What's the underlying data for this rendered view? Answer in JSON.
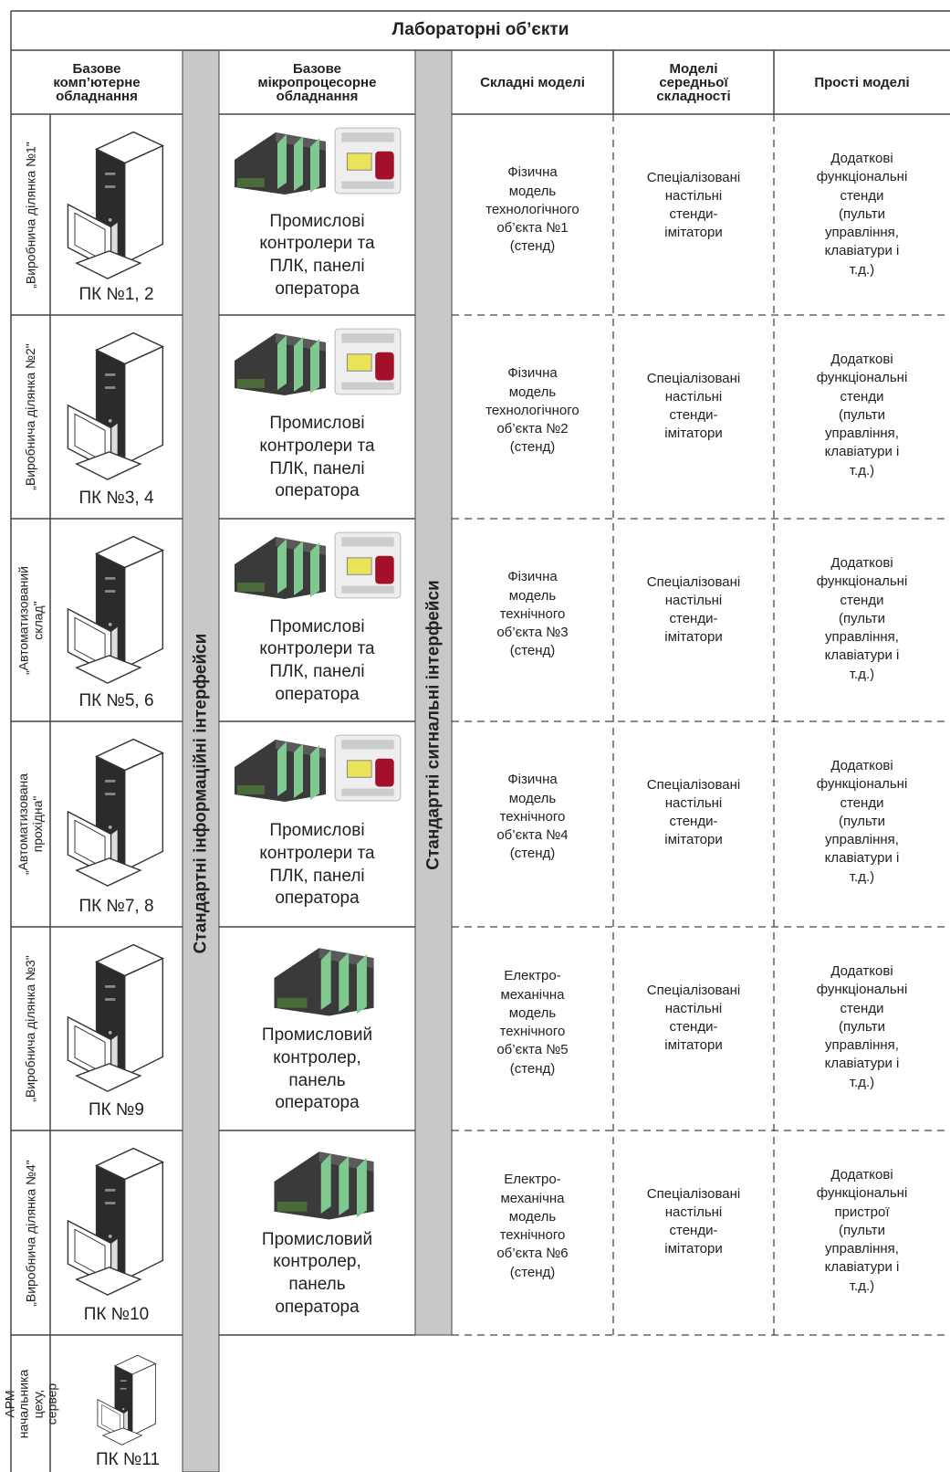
{
  "header": {
    "title": "Лабораторні об’єкти"
  },
  "columns": {
    "computer": "Базове\nкомп’ютерне\nобладнання",
    "micro": "Базове\nмікропроцесорне\nобладнання",
    "info_interfaces": "Стандартні інформаційні інтерфейси",
    "signal_interfaces": "Стандартні сигнальні інтерфейси",
    "complex": "Складні моделі",
    "medium": "Моделі\nсередньої\nскладності",
    "simple": "Прості моделі"
  },
  "rows": [
    {
      "site": "„Виробнича ділянка №1\"",
      "pc": "ПК №1, 2",
      "controllers": "Промислові\nконтролери та\nПЛК, панелі\nоператора",
      "complex": "Фізична\nмодель\nтехнологічного\nоб’єкта №1\n(стенд)",
      "medium": "Спеціалізовані\nнастільні\nстенди-\nімітатори",
      "simple": "Додаткові\nфункціональні\nстенди\n(пульти\nуправління,\nклавіатури і\nт.д.)"
    },
    {
      "site": "„Виробнича ділянка №2\"",
      "pc": "ПК №3, 4",
      "controllers": "Промислові\nконтролери та\nПЛК, панелі\nоператора",
      "complex": "Фізична\nмодель\nтехнологічного\nоб’єкта №2\n(стенд)",
      "medium": "Спеціалізовані\nнастільні\nстенди-\nімітатори",
      "simple": "Додаткові\nфункціональні\nстенди\n(пульти\nуправління,\nклавіатури і\nт.д.)"
    },
    {
      "site": "„Автоматизований\nсклад\"",
      "pc": "ПК №5, 6",
      "controllers": "Промислові\nконтролери та\nПЛК, панелі\nоператора",
      "complex": "Фізична\nмодель\nтехнічного\nоб’єкта №3\n(стенд)",
      "medium": "Спеціалізовані\nнастільні\nстенди-\nімітатори",
      "simple": "Додаткові\nфункціональні\nстенди\n(пульти\nуправління,\nклавіатури і\nт.д.)"
    },
    {
      "site": "„Автоматизована\nпрохідна\"",
      "pc": "ПК №7, 8",
      "controllers": "Промислові\nконтролери та\nПЛК, панелі\nоператора",
      "complex": "Фізична\nмодель\nтехнічного\nоб’єкта №4\n(стенд)",
      "medium": "Спеціалізовані\nнастільні\nстенди-\nімітатори",
      "simple": "Додаткові\nфункціональні\nстенди\n(пульти\nуправління,\nклавіатури і\nт.д.)"
    },
    {
      "site": "„Виробнича ділянка №3\"",
      "pc": "ПК №9",
      "controllers": "Промисловий\nконтролер,\nпанель\nоператора",
      "complex": "Електро-\nмеханічна\nмодель\nтехнічного\nоб’єкта №5\n(стенд)",
      "medium": "Спеціалізовані\nнастільні\nстенди-\nімітатори",
      "simple": "Додаткові\nфункціональні\nстенди\n(пульти\nуправління,\nклавіатури і\nт.д.)"
    },
    {
      "site": "„Виробнича ділянка №4\"",
      "pc": "ПК №10",
      "controllers": "Промисловий\nконтролер,\nпанель\nоператора",
      "complex": "Електро-\nмеханічна\nмодель\nтехнічного\nоб’єкта №6\n(стенд)",
      "medium": "Спеціалізовані\nнастільні\nстенди-\nімітатори",
      "simple": "Додаткові\nфункціональні\nпристрої\n(пульти\nуправління,\nклавіатури і\nт.д.)"
    },
    {
      "site": "АРМ\nначальника\nцеху,\nсервер",
      "pc": "ПК №11"
    }
  ]
}
